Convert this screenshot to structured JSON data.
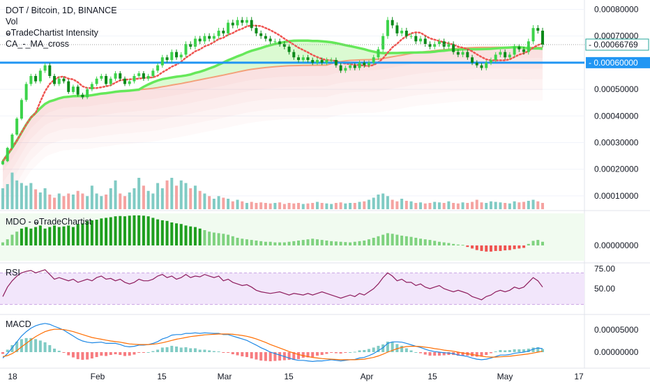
{
  "header": {
    "symbol": "DOT / Bitcoin, 1D, BINANCE",
    "vol": "Vol",
    "indicator_1": "ⱺTradeChartist Intensity",
    "indicator_2": "CA_-_MA_cross"
  },
  "colors": {
    "up": "#26a69a",
    "down": "#ef5350",
    "vol_up": "#80cbc4",
    "vol_down": "#f5a3a1",
    "support_line": "#2196f3",
    "ma_fast": "#ef5350",
    "ma_green": "#66e85a",
    "ma_orange": "#f3a07a",
    "rsi": "#8e1d5e",
    "macd": "#1e88e5",
    "signal": "#ff6d00"
  },
  "x_axis": {
    "labels": [
      "18",
      "Feb",
      "15",
      "Mar",
      "15",
      "Apr",
      "15",
      "May",
      "17"
    ]
  },
  "panes": {
    "mdo_label": "MDO - ⱺTradeChartist",
    "rsi_label": "RSI",
    "macd_label": "MACD"
  },
  "chart_data": [
    {
      "type": "candlestick",
      "title": "DOT / Bitcoin, 1D, BINANCE",
      "y_ticks": [
        "0.00080000",
        "0.00070000",
        "0.00050000",
        "0.00040000",
        "0.00030000",
        "0.00020000",
        "0.00010000"
      ],
      "ylim": [
        5e-05,
        0.00083
      ],
      "last_price_label": "0.00066769",
      "last_price": 0.00066769,
      "support_label": "0.00060000",
      "support_level": 0.0006,
      "closes": [
        0.00023,
        0.00028,
        0.00033,
        0.00039,
        0.00046,
        0.00052,
        0.00055,
        0.00053,
        0.00057,
        0.00059,
        0.00055,
        0.00052,
        0.00054,
        0.00053,
        0.00049,
        0.00051,
        0.00048,
        0.00047,
        0.0005,
        0.00052,
        0.00054,
        0.00055,
        0.00052,
        0.00054,
        0.00056,
        0.00054,
        0.00052,
        0.00053,
        0.00055,
        0.00056,
        0.00054,
        0.00055,
        0.00057,
        0.00059,
        0.00062,
        0.00061,
        0.00064,
        0.00062,
        0.00063,
        0.00067,
        0.00066,
        0.00069,
        0.00068,
        0.0007,
        0.00069,
        0.0007,
        0.00072,
        0.00071,
        0.00075,
        0.00074,
        0.00076,
        0.00075,
        0.00076,
        0.00073,
        0.00071,
        0.0007,
        0.00069,
        0.00068,
        0.00068,
        0.00067,
        0.00066,
        0.00064,
        0.00062,
        0.00061,
        0.00062,
        0.00061,
        0.0006,
        0.00061,
        0.0006,
        0.00061,
        0.00061,
        0.00059,
        0.00057,
        0.00058,
        0.00059,
        0.00058,
        0.0006,
        0.00059,
        0.0006,
        0.00062,
        0.00065,
        0.0007,
        0.00076,
        0.00074,
        0.00071,
        0.00072,
        0.0007,
        0.0007,
        0.00068,
        0.00069,
        0.00067,
        0.00066,
        0.00067,
        0.00068,
        0.00066,
        0.00067,
        0.00064,
        0.00063,
        0.00064,
        0.00062,
        0.0006,
        0.00059,
        0.00058,
        0.0006,
        0.00061,
        0.00063,
        0.00064,
        0.00062,
        0.00063,
        0.00066,
        0.00065,
        0.00064,
        0.00068,
        0.00073,
        0.00072,
        0.00066769
      ],
      "volumes": [
        0.4,
        0.48,
        0.7,
        0.55,
        0.5,
        0.45,
        0.5,
        0.38,
        0.32,
        0.4,
        0.28,
        0.22,
        0.3,
        0.25,
        0.3,
        0.28,
        0.35,
        0.3,
        0.25,
        0.45,
        0.3,
        0.25,
        0.28,
        0.4,
        0.55,
        0.3,
        0.25,
        0.32,
        0.4,
        0.6,
        0.45,
        0.35,
        0.3,
        0.5,
        0.4,
        0.55,
        0.6,
        0.45,
        0.55,
        0.5,
        0.4,
        0.45,
        0.35,
        0.3,
        0.25,
        0.2,
        0.25,
        0.22,
        0.2,
        0.15,
        0.18,
        0.15,
        0.12,
        0.14,
        0.12,
        0.13,
        0.12,
        0.11,
        0.12,
        0.13,
        0.1,
        0.12,
        0.11,
        0.12,
        0.1,
        0.11,
        0.12,
        0.14,
        0.12,
        0.11,
        0.1,
        0.12,
        0.13,
        0.11,
        0.12,
        0.12,
        0.14,
        0.15,
        0.18,
        0.22,
        0.28,
        0.3,
        0.25,
        0.18,
        0.15,
        0.2,
        0.16,
        0.15,
        0.12,
        0.13,
        0.11,
        0.12,
        0.14,
        0.13,
        0.12,
        0.15,
        0.12,
        0.11,
        0.13,
        0.12,
        0.14,
        0.18,
        0.13,
        0.12,
        0.15,
        0.14,
        0.13,
        0.12,
        0.11,
        0.15,
        0.13,
        0.14,
        0.16,
        0.18,
        0.15,
        0.12
      ]
    },
    {
      "type": "bar",
      "title": "MDO - ⱺTradeChartist",
      "y_ticks": [
        "0.00000000"
      ],
      "values": [
        0.1,
        0.2,
        0.35,
        0.45,
        0.55,
        0.6,
        0.55,
        0.6,
        0.65,
        0.55,
        0.6,
        0.65,
        0.6,
        0.62,
        0.65,
        0.6,
        0.7,
        0.72,
        0.8,
        0.82,
        0.84,
        0.88,
        0.9,
        0.92,
        0.95,
        0.96,
        0.95,
        0.97,
        0.98,
        0.98,
        0.97,
        0.95,
        0.9,
        0.85,
        0.82,
        0.8,
        0.75,
        0.72,
        0.7,
        0.65,
        0.62,
        0.6,
        0.55,
        0.5,
        0.45,
        0.42,
        0.4,
        0.38,
        0.35,
        0.3,
        0.25,
        0.22,
        0.2,
        0.18,
        0.16,
        0.14,
        0.12,
        0.12,
        0.1,
        0.1,
        0.1,
        0.12,
        0.14,
        0.16,
        0.18,
        0.2,
        0.22,
        0.2,
        0.18,
        0.16,
        0.14,
        0.13,
        0.12,
        0.11,
        0.1,
        0.12,
        0.14,
        0.16,
        0.2,
        0.25,
        0.3,
        0.35,
        0.4,
        0.38,
        0.35,
        0.32,
        0.3,
        0.28,
        0.25,
        0.22,
        0.2,
        0.18,
        0.15,
        0.12,
        0.1,
        0.08,
        0.05,
        0.03,
        0.02,
        -0.05,
        -0.1,
        -0.15,
        -0.18,
        -0.2,
        -0.2,
        -0.18,
        -0.18,
        -0.16,
        -0.15,
        -0.12,
        -0.1,
        -0.08,
        0.05,
        0.15,
        0.18,
        0.12
      ]
    },
    {
      "type": "line",
      "title": "RSI",
      "y_ticks": [
        "75.00",
        "50.00"
      ],
      "band": [
        30,
        70
      ],
      "values": [
        40,
        52,
        60,
        66,
        70,
        72,
        73,
        70,
        72,
        74,
        68,
        62,
        64,
        62,
        60,
        62,
        58,
        60,
        62,
        60,
        64,
        66,
        62,
        63,
        60,
        62,
        58,
        56,
        58,
        62,
        60,
        60,
        62,
        66,
        68,
        64,
        66,
        62,
        64,
        68,
        64,
        66,
        65,
        68,
        66,
        64,
        66,
        60,
        62,
        58,
        56,
        54,
        55,
        52,
        48,
        46,
        45,
        44,
        45,
        46,
        44,
        42,
        44,
        43,
        42,
        44,
        42,
        44,
        46,
        44,
        42,
        40,
        38,
        40,
        42,
        40,
        44,
        42,
        46,
        50,
        56,
        64,
        70,
        66,
        60,
        62,
        58,
        58,
        54,
        56,
        52,
        50,
        52,
        54,
        50,
        48,
        46,
        48,
        46,
        44,
        40,
        38,
        36,
        40,
        42,
        46,
        48,
        46,
        48,
        52,
        50,
        52,
        58,
        64,
        60,
        52
      ]
    },
    {
      "type": "line",
      "title": "MACD",
      "y_ticks": [
        "0.00005000",
        "0.00000000"
      ],
      "macd": [
        -0.2,
        -0.05,
        0.15,
        0.35,
        0.55,
        0.7,
        0.82,
        0.9,
        0.95,
        0.98,
        0.95,
        0.88,
        0.82,
        0.75,
        0.65,
        0.55,
        0.45,
        0.38,
        0.34,
        0.32,
        0.33,
        0.34,
        0.3,
        0.3,
        0.3,
        0.26,
        0.2,
        0.18,
        0.2,
        0.24,
        0.24,
        0.26,
        0.3,
        0.36,
        0.45,
        0.5,
        0.58,
        0.6,
        0.6,
        0.64,
        0.64,
        0.66,
        0.64,
        0.66,
        0.65,
        0.64,
        0.64,
        0.6,
        0.6,
        0.55,
        0.5,
        0.45,
        0.4,
        0.32,
        0.24,
        0.15,
        0.08,
        0.0,
        -0.05,
        -0.1,
        -0.15,
        -0.2,
        -0.25,
        -0.28,
        -0.28,
        -0.3,
        -0.32,
        -0.3,
        -0.3,
        -0.28,
        -0.26,
        -0.28,
        -0.3,
        -0.28,
        -0.26,
        -0.25,
        -0.2,
        -0.18,
        -0.12,
        -0.05,
        0.05,
        0.15,
        0.3,
        0.35,
        0.35,
        0.34,
        0.3,
        0.25,
        0.2,
        0.16,
        0.1,
        0.05,
        0.02,
        0.0,
        -0.02,
        -0.03,
        -0.05,
        -0.1,
        -0.12,
        -0.15,
        -0.2,
        -0.24,
        -0.26,
        -0.24,
        -0.2,
        -0.15,
        -0.1,
        -0.1,
        -0.08,
        -0.04,
        -0.02,
        0.0,
        0.04,
        0.1,
        0.14,
        0.12
      ],
      "signal": [
        -0.15,
        -0.12,
        -0.05,
        0.05,
        0.18,
        0.3,
        0.42,
        0.53,
        0.62,
        0.7,
        0.75,
        0.78,
        0.78,
        0.77,
        0.74,
        0.7,
        0.65,
        0.6,
        0.55,
        0.5,
        0.47,
        0.44,
        0.41,
        0.38,
        0.36,
        0.34,
        0.31,
        0.28,
        0.27,
        0.26,
        0.26,
        0.26,
        0.27,
        0.29,
        0.32,
        0.36,
        0.4,
        0.44,
        0.47,
        0.5,
        0.53,
        0.55,
        0.57,
        0.59,
        0.6,
        0.61,
        0.62,
        0.62,
        0.62,
        0.61,
        0.59,
        0.57,
        0.54,
        0.5,
        0.45,
        0.39,
        0.33,
        0.26,
        0.2,
        0.14,
        0.08,
        0.02,
        -0.03,
        -0.08,
        -0.12,
        -0.15,
        -0.18,
        -0.2,
        -0.22,
        -0.23,
        -0.24,
        -0.25,
        -0.26,
        -0.26,
        -0.26,
        -0.26,
        -0.25,
        -0.24,
        -0.21,
        -0.18,
        -0.13,
        -0.07,
        0.0,
        0.06,
        0.12,
        0.16,
        0.19,
        0.2,
        0.2,
        0.19,
        0.17,
        0.15,
        0.12,
        0.1,
        0.07,
        0.05,
        0.03,
        0.0,
        -0.03,
        -0.05,
        -0.08,
        -0.11,
        -0.14,
        -0.16,
        -0.17,
        -0.17,
        -0.16,
        -0.15,
        -0.14,
        -0.12,
        -0.1,
        -0.08,
        -0.06,
        -0.03,
        0.0,
        0.03
      ]
    }
  ]
}
